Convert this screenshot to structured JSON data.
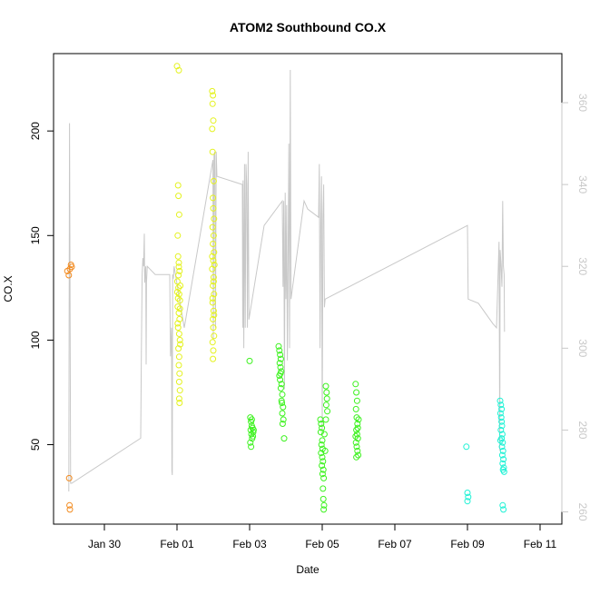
{
  "chart_data": {
    "type": "scatter",
    "title": "ATOM2 Southbound CO.X",
    "xlabel": "Date",
    "ylabel": "CO.X",
    "y2label": "",
    "x_ticks": [
      "Jan 30",
      "Feb 01",
      "Feb 03",
      "Feb 05",
      "Feb 07",
      "Feb 09",
      "Feb 11"
    ],
    "xlim": [
      -1.4,
      12.6
    ],
    "ylim": [
      12,
      237
    ],
    "yticks": [
      50,
      100,
      150,
      200
    ],
    "y2lim": [
      257,
      372
    ],
    "y2ticks": [
      260,
      280,
      300,
      320,
      340,
      360
    ],
    "grid": false,
    "x_units": "days after Jan 30",
    "colors": {
      "point_series_orange": "#F28A1E",
      "point_series_yellow": "#E4F21E",
      "point_series_green": "#3CF21E",
      "point_series_cyan": "#1EF2D5",
      "secondary_line": "#C8C8C8"
    },
    "series": [
      {
        "color": "orange",
        "points": [
          [
            -1.02,
            133
          ],
          [
            -0.98,
            131
          ],
          [
            -0.95,
            134
          ],
          [
            -0.92,
            136
          ],
          [
            -0.9,
            135
          ],
          [
            -0.97,
            34
          ],
          [
            -0.96,
            21
          ],
          [
            -0.95,
            19
          ]
        ]
      },
      {
        "color": "yellow",
        "points": [
          [
            2.0,
            231
          ],
          [
            2.05,
            229
          ],
          [
            2.03,
            174
          ],
          [
            2.04,
            169
          ],
          [
            2.06,
            160
          ],
          [
            2.02,
            150
          ],
          [
            2.03,
            140
          ],
          [
            2.05,
            137
          ],
          [
            2.07,
            133
          ],
          [
            2.01,
            128
          ],
          [
            2.04,
            125
          ],
          [
            2.06,
            122
          ],
          [
            2.08,
            119
          ],
          [
            2.02,
            116
          ],
          [
            2.05,
            113
          ],
          [
            2.07,
            110
          ],
          [
            2.03,
            106
          ],
          [
            2.06,
            103
          ],
          [
            2.08,
            100
          ],
          [
            2.04,
            96
          ],
          [
            2.06,
            92
          ],
          [
            2.05,
            88
          ],
          [
            2.07,
            84
          ],
          [
            2.06,
            80
          ],
          [
            2.08,
            76
          ],
          [
            2.06,
            72
          ],
          [
            2.07,
            70
          ],
          [
            2.03,
            120
          ],
          [
            2.09,
            126
          ],
          [
            2.04,
            131
          ],
          [
            2.09,
            98
          ],
          [
            2.02,
            108
          ],
          [
            2.08,
            115
          ],
          [
            2.05,
            135
          ],
          [
            2.01,
            123
          ],
          [
            2.97,
            219
          ],
          [
            2.99,
            217
          ],
          [
            2.98,
            213
          ],
          [
            3.0,
            205
          ],
          [
            2.97,
            201
          ],
          [
            2.98,
            190
          ],
          [
            3.01,
            176
          ],
          [
            2.99,
            168
          ],
          [
            3.0,
            163
          ],
          [
            3.02,
            158
          ],
          [
            2.98,
            154
          ],
          [
            3.01,
            150
          ],
          [
            2.99,
            146
          ],
          [
            3.02,
            142
          ],
          [
            3.0,
            138
          ],
          [
            2.97,
            134
          ],
          [
            3.01,
            130
          ],
          [
            2.99,
            126
          ],
          [
            3.02,
            122
          ],
          [
            2.98,
            118
          ],
          [
            3.01,
            114
          ],
          [
            2.99,
            110
          ],
          [
            3.0,
            106
          ],
          [
            3.02,
            102
          ],
          [
            2.98,
            99
          ],
          [
            3.0,
            95
          ],
          [
            2.99,
            91
          ],
          [
            3.01,
            128
          ],
          [
            3.03,
            136
          ],
          [
            2.97,
            140
          ],
          [
            3.02,
            112
          ],
          [
            2.98,
            120
          ]
        ]
      },
      {
        "color": "green",
        "points": [
          [
            4.0,
            90
          ],
          [
            4.02,
            63
          ],
          [
            4.04,
            61
          ],
          [
            4.06,
            59
          ],
          [
            4.03,
            57
          ],
          [
            4.05,
            55
          ],
          [
            4.07,
            53
          ],
          [
            4.02,
            51
          ],
          [
            4.04,
            49
          ],
          [
            4.08,
            58
          ],
          [
            4.1,
            56
          ],
          [
            4.06,
            62
          ],
          [
            4.09,
            54
          ],
          [
            4.11,
            57
          ],
          [
            4.8,
            97
          ],
          [
            4.82,
            95
          ],
          [
            4.84,
            93
          ],
          [
            4.86,
            91
          ],
          [
            4.83,
            89
          ],
          [
            4.85,
            87
          ],
          [
            4.87,
            85
          ],
          [
            4.82,
            83
          ],
          [
            4.84,
            81
          ],
          [
            4.88,
            79
          ],
          [
            4.86,
            77
          ],
          [
            4.9,
            74
          ],
          [
            4.88,
            71
          ],
          [
            4.92,
            68
          ],
          [
            4.9,
            65
          ],
          [
            4.93,
            62
          ],
          [
            4.91,
            60
          ],
          [
            4.95,
            53
          ],
          [
            4.89,
            70
          ],
          [
            4.85,
            84
          ],
          [
            5.95,
            62
          ],
          [
            5.97,
            60
          ],
          [
            5.99,
            58
          ],
          [
            5.96,
            56
          ],
          [
            6.0,
            52
          ],
          [
            5.98,
            50
          ],
          [
            6.01,
            48
          ],
          [
            5.97,
            46
          ],
          [
            6.0,
            44
          ],
          [
            6.02,
            42
          ],
          [
            5.99,
            40
          ],
          [
            6.03,
            38
          ],
          [
            6.01,
            36
          ],
          [
            6.04,
            34
          ],
          [
            6.02,
            29
          ],
          [
            6.03,
            24
          ],
          [
            6.05,
            21
          ],
          [
            6.04,
            19
          ],
          [
            6.1,
            78
          ],
          [
            6.12,
            75
          ],
          [
            6.13,
            72
          ],
          [
            6.11,
            69
          ],
          [
            6.14,
            66
          ],
          [
            6.1,
            62
          ],
          [
            6.06,
            55
          ],
          [
            6.08,
            47
          ],
          [
            6.92,
            79
          ],
          [
            6.94,
            75
          ],
          [
            6.96,
            71
          ],
          [
            6.93,
            67
          ],
          [
            6.95,
            63
          ],
          [
            6.97,
            60
          ],
          [
            6.94,
            57
          ],
          [
            6.96,
            55
          ],
          [
            6.98,
            53
          ],
          [
            6.93,
            51
          ],
          [
            6.95,
            49
          ],
          [
            6.97,
            47
          ],
          [
            6.99,
            45
          ],
          [
            6.94,
            44
          ],
          [
            7.0,
            62
          ],
          [
            6.98,
            58
          ],
          [
            6.92,
            54
          ]
        ]
      },
      {
        "color": "cyan",
        "points": [
          [
            9.97,
            49
          ],
          [
            10.0,
            27
          ],
          [
            10.02,
            25
          ],
          [
            10.0,
            23
          ],
          [
            10.9,
            71
          ],
          [
            10.92,
            69
          ],
          [
            10.94,
            67
          ],
          [
            10.91,
            65
          ],
          [
            10.93,
            63
          ],
          [
            10.95,
            59
          ],
          [
            10.92,
            57
          ],
          [
            10.96,
            55
          ],
          [
            10.94,
            53
          ],
          [
            10.97,
            51
          ],
          [
            10.95,
            49
          ],
          [
            10.98,
            47
          ],
          [
            10.96,
            45
          ],
          [
            10.99,
            43
          ],
          [
            10.97,
            41
          ],
          [
            11.0,
            39
          ],
          [
            10.98,
            38
          ],
          [
            11.01,
            37
          ],
          [
            10.97,
            21
          ],
          [
            10.99,
            19
          ],
          [
            10.94,
            61
          ],
          [
            10.91,
            52
          ]
        ]
      }
    ],
    "secondary_series": {
      "axis": "right",
      "color": "#C8C8C8",
      "points": [
        [
          -0.98,
          265
        ],
        [
          -0.96,
          355
        ],
        [
          -0.93,
          267
        ],
        [
          -0.9,
          267
        ],
        [
          1.0,
          278
        ],
        [
          1.02,
          300
        ],
        [
          1.04,
          318
        ],
        [
          1.06,
          322
        ],
        [
          1.08,
          320
        ],
        [
          1.1,
          328
        ],
        [
          1.11,
          316
        ],
        [
          1.12,
          318
        ],
        [
          1.14,
          320
        ],
        [
          1.15,
          296
        ],
        [
          1.16,
          316
        ],
        [
          1.18,
          320
        ],
        [
          1.4,
          318
        ],
        [
          1.8,
          318
        ],
        [
          1.82,
          298
        ],
        [
          1.85,
          305
        ],
        [
          1.86,
          270
        ],
        [
          1.87,
          269
        ],
        [
          1.88,
          318
        ],
        [
          1.9,
          317
        ],
        [
          1.92,
          320
        ],
        [
          2.2,
          305
        ],
        [
          2.99,
          346
        ],
        [
          3.0,
          302
        ],
        [
          3.02,
          347
        ],
        [
          3.04,
          348
        ],
        [
          3.06,
          305
        ],
        [
          3.08,
          348
        ],
        [
          3.1,
          342
        ],
        [
          3.8,
          340
        ],
        [
          3.81,
          305
        ],
        [
          3.82,
          341
        ],
        [
          3.84,
          300
        ],
        [
          3.86,
          345
        ],
        [
          3.88,
          305
        ],
        [
          3.9,
          345
        ],
        [
          3.92,
          340
        ],
        [
          3.94,
          305
        ],
        [
          3.96,
          348
        ],
        [
          3.98,
          307
        ],
        [
          4.4,
          330
        ],
        [
          4.9,
          336
        ],
        [
          4.92,
          315
        ],
        [
          4.94,
          336
        ],
        [
          4.96,
          290
        ],
        [
          4.98,
          338
        ],
        [
          5.0,
          312
        ],
        [
          5.02,
          335
        ],
        [
          5.04,
          297
        ],
        [
          5.06,
          322
        ],
        [
          5.08,
          350
        ],
        [
          5.1,
          300
        ],
        [
          5.12,
          368
        ],
        [
          5.14,
          312
        ],
        [
          5.5,
          336
        ],
        [
          5.6,
          334
        ],
        [
          5.9,
          332
        ],
        [
          5.92,
          345
        ],
        [
          5.94,
          300
        ],
        [
          5.96,
          331
        ],
        [
          5.98,
          342
        ],
        [
          6.0,
          280
        ],
        [
          6.02,
          332
        ],
        [
          6.04,
          340
        ],
        [
          6.06,
          310
        ],
        [
          6.08,
          312
        ],
        [
          10.0,
          330
        ],
        [
          10.02,
          312
        ],
        [
          10.3,
          311
        ],
        [
          10.7,
          306
        ],
        [
          10.8,
          305
        ],
        [
          10.85,
          320
        ],
        [
          10.87,
          326
        ],
        [
          10.89,
          275
        ],
        [
          10.9,
          324
        ],
        [
          10.92,
          321
        ],
        [
          10.95,
          315
        ],
        [
          10.97,
          336
        ],
        [
          10.99,
          320
        ],
        [
          11.01,
          318
        ],
        [
          11.02,
          304
        ]
      ]
    }
  }
}
